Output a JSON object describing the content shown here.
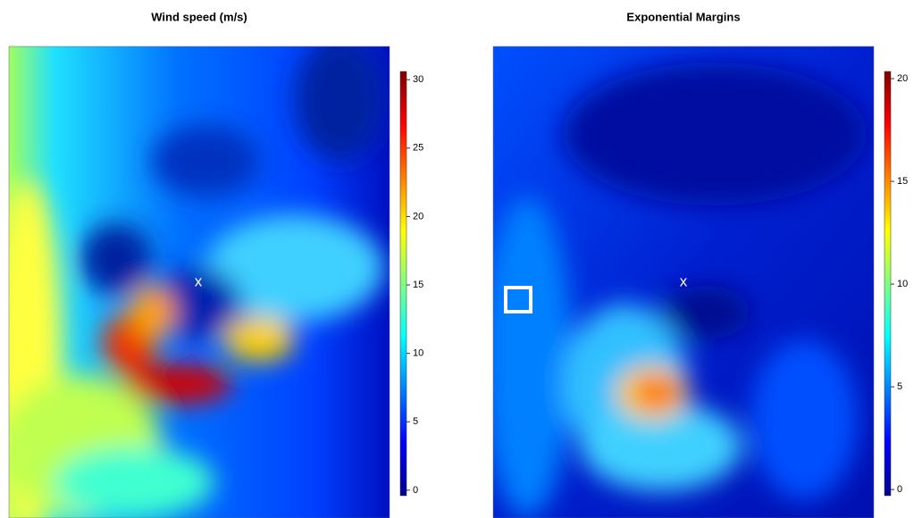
{
  "chart_data": [
    {
      "type": "heatmap",
      "title": "Wind speed (m/s)",
      "annotation": "x",
      "colors": [
        "#00008f",
        "#0000ff",
        "#0080ff",
        "#00ffff",
        "#80ff80",
        "#ffff00",
        "#ff8000",
        "#ff0000",
        "#800000"
      ],
      "ylim": [
        -0.4,
        30.6
      ],
      "yticks": [
        0,
        5,
        10,
        15,
        20,
        25,
        30
      ]
    },
    {
      "type": "heatmap",
      "title": "Exponential Margins",
      "annotation": "x",
      "colors": [
        "#00008f",
        "#0000ff",
        "#0080ff",
        "#00ffff",
        "#80ff80",
        "#ffff00",
        "#ff8000",
        "#ff0000",
        "#800000"
      ],
      "ylim": [
        -0.3,
        20.35
      ],
      "yticks": [
        0,
        5,
        10,
        15,
        20
      ]
    }
  ]
}
